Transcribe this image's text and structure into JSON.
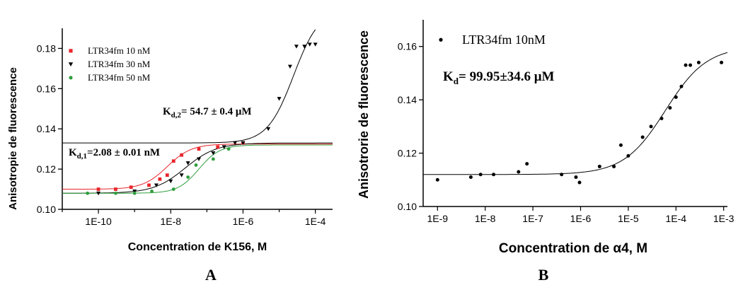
{
  "chart_data": [
    {
      "panel": "A",
      "type": "scatter",
      "xscale": "log",
      "xlabel": "Concentration de K156, M",
      "ylabel": "Anisotropie de fluorescence",
      "xlim": [
        1e-11,
        0.0003
      ],
      "ylim": [
        0.1,
        0.19
      ],
      "xticks": [
        1e-10,
        1e-08,
        1e-06,
        0.0001
      ],
      "xtick_labels": [
        "1E-10",
        "1E-8",
        "1E-6",
        "1E-4"
      ],
      "yticks": [
        0.1,
        0.12,
        0.14,
        0.16,
        0.18
      ],
      "ytick_labels": [
        "0.10",
        "0.12",
        "0.14",
        "0.16",
        "0.18"
      ],
      "legend_position": "top-left",
      "annotations": [
        {
          "main": "K",
          "sub": "d,2",
          "rest": "= 54.7 ± 0.4 μM"
        },
        {
          "main": "K",
          "sub": "d,1",
          "rest": "=2.08 ± 0.01 nM"
        }
      ],
      "series": [
        {
          "name": "LTR34fm 10 nM",
          "marker": "square",
          "color": "#e8262b",
          "x": [
            1e-10,
            3e-10,
            8e-10,
            2.5e-09,
            5e-09,
            8e-09,
            1.2e-08,
            2e-08,
            6e-08,
            2e-07,
            1e-06
          ],
          "y": [
            0.11,
            0.11,
            0.111,
            0.112,
            0.115,
            0.117,
            0.124,
            0.127,
            0.13,
            0.131,
            0.133
          ]
        },
        {
          "name": "LTR34fm 30 nM",
          "marker": "triangle-down",
          "color": "#000000",
          "x": [
            1e-10,
            1e-09,
            4e-09,
            1e-08,
            2e-08,
            3e-08,
            6e-08,
            1.5e-07,
            3e-07,
            6e-07,
            1e-06,
            5e-06,
            1e-05,
            2e-05,
            3e-05,
            5e-05,
            7e-05,
            0.0001
          ],
          "y": [
            0.108,
            0.109,
            0.112,
            0.114,
            0.117,
            0.123,
            0.125,
            0.128,
            0.131,
            0.133,
            0.133,
            0.14,
            0.155,
            0.171,
            0.181,
            0.181,
            0.182,
            0.182
          ]
        },
        {
          "name": "LTR34fm 50 nM",
          "marker": "circle",
          "color": "#2e9e3c",
          "x": [
            5e-11,
            3e-10,
            1e-09,
            3e-09,
            1.2e-08,
            3e-08,
            5e-08,
            1.5e-07,
            4e-07
          ],
          "y": [
            0.108,
            0.108,
            0.108,
            0.109,
            0.11,
            0.116,
            0.122,
            0.125,
            0.13
          ]
        }
      ],
      "fits": [
        {
          "color": "#e8262b",
          "bottom": 0.11,
          "top": 0.1325,
          "ec50": 8e-09,
          "hill": 1.3
        },
        {
          "color": "#000000",
          "bottom": 0.108,
          "top": 0.133,
          "ec50": 2.5e-08,
          "hill": 1.0
        },
        {
          "color": "#2e9e3c",
          "bottom": 0.108,
          "top": 0.132,
          "ec50": 6e-08,
          "hill": 1.5
        },
        {
          "color": "#000000",
          "bottom": 0.133,
          "top": 0.2,
          "ec50": 2.5e-05,
          "hill": 1.2
        }
      ]
    },
    {
      "panel": "B",
      "type": "scatter",
      "xscale": "log",
      "xlabel": "Concentration de α4, M",
      "ylabel": "Anisotrorie de fluorescence",
      "xlim": [
        5e-10,
        0.0012
      ],
      "ylim": [
        0.1,
        0.17
      ],
      "xticks": [
        1e-09,
        1e-08,
        1e-07,
        1e-06,
        1e-05,
        0.0001,
        0.001
      ],
      "xtick_labels": [
        "1E-9",
        "1E-8",
        "1E-7",
        "1E-6",
        "1E-5",
        "1E-4",
        "1E-3"
      ],
      "yticks": [
        0.1,
        0.12,
        0.14,
        0.16
      ],
      "ytick_labels": [
        "0.10",
        "0.12",
        "0.14",
        "0.16"
      ],
      "legend_position": "top-left",
      "annotations": [
        {
          "main": "K",
          "sub": "d",
          "rest": "= 99.95±34.6 μM"
        }
      ],
      "series": [
        {
          "name": "LTR34fm 10nM",
          "marker": "circle",
          "color": "#000000",
          "x": [
            1e-09,
            5e-09,
            8e-09,
            1.5e-08,
            5e-08,
            7.5e-08,
            4e-07,
            8e-07,
            9.5e-07,
            2.5e-06,
            5e-06,
            7e-06,
            1e-05,
            2e-05,
            3e-05,
            5e-05,
            7.5e-05,
            0.0001,
            0.00013,
            0.00016,
            0.0002,
            0.0003,
            0.0009
          ],
          "y": [
            0.11,
            0.111,
            0.112,
            0.112,
            0.113,
            0.116,
            0.112,
            0.111,
            0.109,
            0.115,
            0.115,
            0.123,
            0.119,
            0.126,
            0.13,
            0.133,
            0.137,
            0.141,
            0.145,
            0.153,
            0.153,
            0.154,
            0.154
          ]
        }
      ],
      "fits": [
        {
          "color": "#000000",
          "bottom": 0.112,
          "top": 0.16,
          "ec50": 6e-05,
          "hill": 1.0
        }
      ]
    }
  ],
  "panel_labels": [
    "A",
    "B"
  ]
}
